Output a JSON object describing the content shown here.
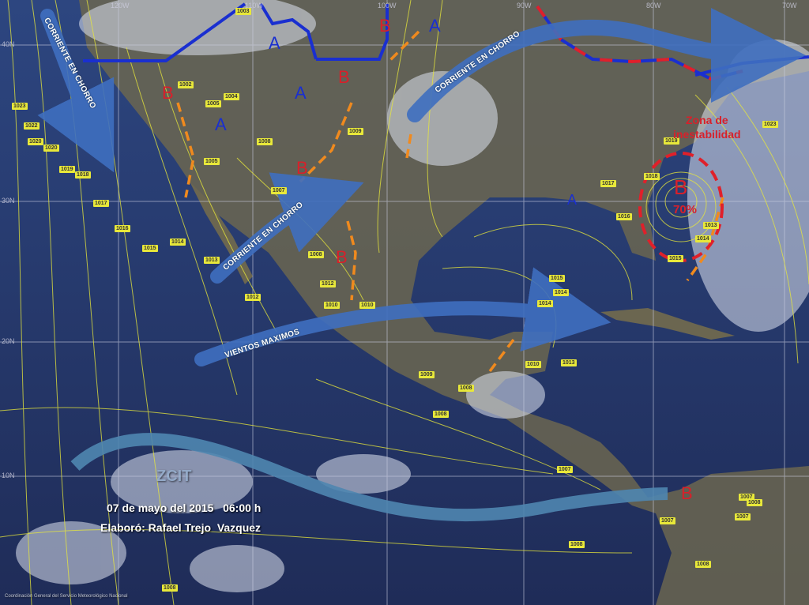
{
  "map": {
    "date_time": "07 de mayo del 2015   06:00 h",
    "author": "Elaboró: Rafael Trejo  Vazquez",
    "credit": "Coordinación General del Servicio Meteorológico Nacional",
    "itcz_label": "ZCIT",
    "instability": {
      "title_line1": "Zona de",
      "title_line2": "inestabilidad",
      "center": "B",
      "probability": "70%"
    },
    "jet_labels": [
      "CORRIENTE EN CHORRO",
      "CORRIENTE EN CHORRO",
      "CORRIENTE EN CHORRO",
      "VIENTOS MAXIMOS"
    ],
    "grid": {
      "lon": [
        "120W",
        "110W",
        "100W",
        "90W",
        "80W",
        "70W"
      ],
      "lat": [
        "40N",
        "30N",
        "20N",
        "10N"
      ]
    },
    "high_centers": [
      "A",
      "A",
      "A",
      "A",
      "A"
    ],
    "low_centers": [
      "B",
      "B",
      "B",
      "B",
      "B",
      "B"
    ],
    "isobars": [
      "1023",
      "1022",
      "1020",
      "1020",
      "1019",
      "1018",
      "1017",
      "1016",
      "1015",
      "1014",
      "1013",
      "1012",
      "1008",
      "1012",
      "1010",
      "1010",
      "1007",
      "1008",
      "1005",
      "1002",
      "1005",
      "1004",
      "1009",
      "1003",
      "1017",
      "1016",
      "1015",
      "1014",
      "1014",
      "1013",
      "1010",
      "1009",
      "1008",
      "1008",
      "1007",
      "1008",
      "1008",
      "1007",
      "1008",
      "1007",
      "1007",
      "1023",
      "1019",
      "1014",
      "1013",
      "1015",
      "1018",
      "1008"
    ],
    "colors": {
      "high": "#1a2fd0",
      "low": "#d8202a",
      "isobar": "#e8e83a",
      "trough": "#f08a1e",
      "jet": "#3f6fc0",
      "itcz": "#4f86b0",
      "cold_front": "#1a2fd0",
      "warm_front": "#e0202a"
    }
  }
}
